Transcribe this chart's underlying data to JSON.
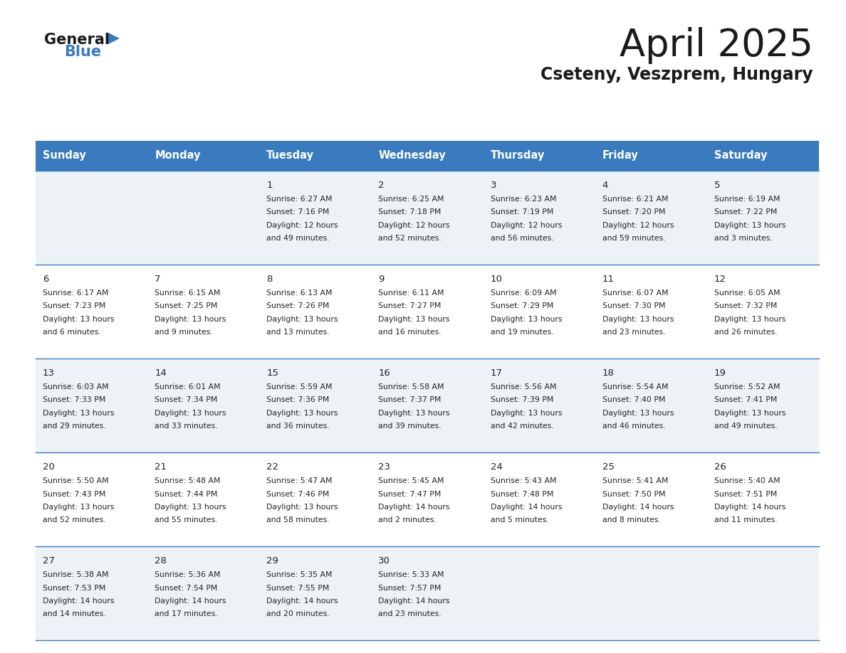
{
  "title": "April 2025",
  "subtitle": "Cseteny, Veszprem, Hungary",
  "header_color": "#3a7bbf",
  "header_text_color": "#ffffff",
  "background_color": "#ffffff",
  "cell_bg_even": "#edf2f7",
  "cell_bg_odd": "#ffffff",
  "text_color": "#222222",
  "days_of_week": [
    "Sunday",
    "Monday",
    "Tuesday",
    "Wednesday",
    "Thursday",
    "Friday",
    "Saturday"
  ],
  "weeks": [
    [
      {
        "day": "",
        "lines": []
      },
      {
        "day": "",
        "lines": []
      },
      {
        "day": "1",
        "lines": [
          "Sunrise: 6:27 AM",
          "Sunset: 7:16 PM",
          "Daylight: 12 hours",
          "and 49 minutes."
        ]
      },
      {
        "day": "2",
        "lines": [
          "Sunrise: 6:25 AM",
          "Sunset: 7:18 PM",
          "Daylight: 12 hours",
          "and 52 minutes."
        ]
      },
      {
        "day": "3",
        "lines": [
          "Sunrise: 6:23 AM",
          "Sunset: 7:19 PM",
          "Daylight: 12 hours",
          "and 56 minutes."
        ]
      },
      {
        "day": "4",
        "lines": [
          "Sunrise: 6:21 AM",
          "Sunset: 7:20 PM",
          "Daylight: 12 hours",
          "and 59 minutes."
        ]
      },
      {
        "day": "5",
        "lines": [
          "Sunrise: 6:19 AM",
          "Sunset: 7:22 PM",
          "Daylight: 13 hours",
          "and 3 minutes."
        ]
      }
    ],
    [
      {
        "day": "6",
        "lines": [
          "Sunrise: 6:17 AM",
          "Sunset: 7:23 PM",
          "Daylight: 13 hours",
          "and 6 minutes."
        ]
      },
      {
        "day": "7",
        "lines": [
          "Sunrise: 6:15 AM",
          "Sunset: 7:25 PM",
          "Daylight: 13 hours",
          "and 9 minutes."
        ]
      },
      {
        "day": "8",
        "lines": [
          "Sunrise: 6:13 AM",
          "Sunset: 7:26 PM",
          "Daylight: 13 hours",
          "and 13 minutes."
        ]
      },
      {
        "day": "9",
        "lines": [
          "Sunrise: 6:11 AM",
          "Sunset: 7:27 PM",
          "Daylight: 13 hours",
          "and 16 minutes."
        ]
      },
      {
        "day": "10",
        "lines": [
          "Sunrise: 6:09 AM",
          "Sunset: 7:29 PM",
          "Daylight: 13 hours",
          "and 19 minutes."
        ]
      },
      {
        "day": "11",
        "lines": [
          "Sunrise: 6:07 AM",
          "Sunset: 7:30 PM",
          "Daylight: 13 hours",
          "and 23 minutes."
        ]
      },
      {
        "day": "12",
        "lines": [
          "Sunrise: 6:05 AM",
          "Sunset: 7:32 PM",
          "Daylight: 13 hours",
          "and 26 minutes."
        ]
      }
    ],
    [
      {
        "day": "13",
        "lines": [
          "Sunrise: 6:03 AM",
          "Sunset: 7:33 PM",
          "Daylight: 13 hours",
          "and 29 minutes."
        ]
      },
      {
        "day": "14",
        "lines": [
          "Sunrise: 6:01 AM",
          "Sunset: 7:34 PM",
          "Daylight: 13 hours",
          "and 33 minutes."
        ]
      },
      {
        "day": "15",
        "lines": [
          "Sunrise: 5:59 AM",
          "Sunset: 7:36 PM",
          "Daylight: 13 hours",
          "and 36 minutes."
        ]
      },
      {
        "day": "16",
        "lines": [
          "Sunrise: 5:58 AM",
          "Sunset: 7:37 PM",
          "Daylight: 13 hours",
          "and 39 minutes."
        ]
      },
      {
        "day": "17",
        "lines": [
          "Sunrise: 5:56 AM",
          "Sunset: 7:39 PM",
          "Daylight: 13 hours",
          "and 42 minutes."
        ]
      },
      {
        "day": "18",
        "lines": [
          "Sunrise: 5:54 AM",
          "Sunset: 7:40 PM",
          "Daylight: 13 hours",
          "and 46 minutes."
        ]
      },
      {
        "day": "19",
        "lines": [
          "Sunrise: 5:52 AM",
          "Sunset: 7:41 PM",
          "Daylight: 13 hours",
          "and 49 minutes."
        ]
      }
    ],
    [
      {
        "day": "20",
        "lines": [
          "Sunrise: 5:50 AM",
          "Sunset: 7:43 PM",
          "Daylight: 13 hours",
          "and 52 minutes."
        ]
      },
      {
        "day": "21",
        "lines": [
          "Sunrise: 5:48 AM",
          "Sunset: 7:44 PM",
          "Daylight: 13 hours",
          "and 55 minutes."
        ]
      },
      {
        "day": "22",
        "lines": [
          "Sunrise: 5:47 AM",
          "Sunset: 7:46 PM",
          "Daylight: 13 hours",
          "and 58 minutes."
        ]
      },
      {
        "day": "23",
        "lines": [
          "Sunrise: 5:45 AM",
          "Sunset: 7:47 PM",
          "Daylight: 14 hours",
          "and 2 minutes."
        ]
      },
      {
        "day": "24",
        "lines": [
          "Sunrise: 5:43 AM",
          "Sunset: 7:48 PM",
          "Daylight: 14 hours",
          "and 5 minutes."
        ]
      },
      {
        "day": "25",
        "lines": [
          "Sunrise: 5:41 AM",
          "Sunset: 7:50 PM",
          "Daylight: 14 hours",
          "and 8 minutes."
        ]
      },
      {
        "day": "26",
        "lines": [
          "Sunrise: 5:40 AM",
          "Sunset: 7:51 PM",
          "Daylight: 14 hours",
          "and 11 minutes."
        ]
      }
    ],
    [
      {
        "day": "27",
        "lines": [
          "Sunrise: 5:38 AM",
          "Sunset: 7:53 PM",
          "Daylight: 14 hours",
          "and 14 minutes."
        ]
      },
      {
        "day": "28",
        "lines": [
          "Sunrise: 5:36 AM",
          "Sunset: 7:54 PM",
          "Daylight: 14 hours",
          "and 17 minutes."
        ]
      },
      {
        "day": "29",
        "lines": [
          "Sunrise: 5:35 AM",
          "Sunset: 7:55 PM",
          "Daylight: 14 hours",
          "and 20 minutes."
        ]
      },
      {
        "day": "30",
        "lines": [
          "Sunrise: 5:33 AM",
          "Sunset: 7:57 PM",
          "Daylight: 14 hours",
          "and 23 minutes."
        ]
      },
      {
        "day": "",
        "lines": []
      },
      {
        "day": "",
        "lines": []
      },
      {
        "day": "",
        "lines": []
      }
    ]
  ]
}
